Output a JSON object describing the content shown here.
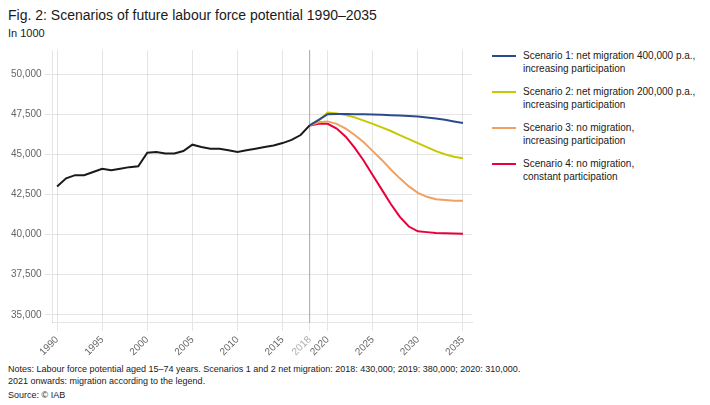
{
  "chart_data": {
    "type": "line",
    "title": "Fig. 2: Scenarios of future labour force potential 1990–2035",
    "subtitle": "In 1000",
    "notes": "Notes: Labour force potential aged 15–74 years. Scenarios 1 and 2 net migration: 2018: 430,000; 2019: 380,000; 2020: 310,000.\n2021 onwards: migration according to the legend.",
    "source": "Source: © IAB",
    "xlim": [
      1989.5,
      2036
    ],
    "xticks": [
      1990,
      1995,
      2000,
      2005,
      2010,
      2015,
      2018,
      2020,
      2025,
      2030,
      2035
    ],
    "ylim": [
      34500,
      51500
    ],
    "yticks": [
      {
        "value": 35000,
        "label": "35,000"
      },
      {
        "value": 37500,
        "label": "37,500"
      },
      {
        "value": 40000,
        "label": "40,000"
      },
      {
        "value": 42500,
        "label": "42,500"
      },
      {
        "value": 45000,
        "label": "45,000"
      },
      {
        "value": 47500,
        "label": "47,500"
      },
      {
        "value": 50000,
        "label": "50,000"
      }
    ],
    "grid": true,
    "legend": "right",
    "vlines": [
      2018
    ],
    "series": [
      {
        "color": "#1a1a1a",
        "x": [
          1990,
          1991,
          1992,
          1993,
          1994,
          1995,
          1996,
          1997,
          1998,
          1999,
          2000,
          2001,
          2002,
          2003,
          2004,
          2005,
          2006,
          2007,
          2008,
          2009,
          2010,
          2011,
          2012,
          2013,
          2014,
          2015,
          2016,
          2017,
          2018
        ],
        "values": [
          43000,
          43500,
          43700,
          43700,
          43900,
          44100,
          44000,
          44100,
          44200,
          44250,
          45100,
          45150,
          45050,
          45050,
          45200,
          45600,
          45450,
          45350,
          45350,
          45250,
          45150,
          45250,
          45350,
          45450,
          45550,
          45700,
          45900,
          46200,
          46800
        ]
      },
      {
        "name": "Scenario 1: net migration 400,000 p.a.,\nincreasing participation",
        "color": "#2a4b8d",
        "x": [
          2018,
          2019,
          2020,
          2021,
          2022,
          2023,
          2024,
          2025,
          2026,
          2027,
          2028,
          2029,
          2030,
          2031,
          2032,
          2033,
          2034,
          2035
        ],
        "values": [
          46800,
          47150,
          47500,
          47510,
          47510,
          47500,
          47490,
          47480,
          47460,
          47440,
          47420,
          47390,
          47350,
          47300,
          47230,
          47150,
          47050,
          46950
        ]
      },
      {
        "name": "Scenario 2: net migration 200,000 p.a.,\nincreasing participation",
        "color": "#c8c800",
        "x": [
          2018,
          2019,
          2020,
          2021,
          2022,
          2023,
          2024,
          2025,
          2026,
          2027,
          2028,
          2029,
          2030,
          2031,
          2032,
          2033,
          2034,
          2035
        ],
        "values": [
          46800,
          47100,
          47600,
          47550,
          47450,
          47300,
          47100,
          46900,
          46680,
          46450,
          46200,
          45950,
          45700,
          45450,
          45200,
          45000,
          44850,
          44750
        ]
      },
      {
        "name": "Scenario 3: no migration,\nincreasing participation",
        "color": "#f0a060",
        "x": [
          2018,
          2019,
          2020,
          2021,
          2022,
          2023,
          2024,
          2025,
          2026,
          2027,
          2028,
          2029,
          2030,
          2031,
          2032,
          2033,
          2034,
          2035
        ],
        "values": [
          46800,
          47000,
          47050,
          46900,
          46600,
          46200,
          45750,
          45200,
          44650,
          44050,
          43500,
          43000,
          42600,
          42350,
          42200,
          42150,
          42100,
          42100
        ]
      },
      {
        "name": "Scenario 4: no migration,\nconstant participation",
        "color": "#e8003c",
        "x": [
          2018,
          2019,
          2020,
          2021,
          2022,
          2023,
          2024,
          2025,
          2026,
          2027,
          2028,
          2029,
          2030,
          2031,
          2032,
          2033,
          2034,
          2035
        ],
        "values": [
          46800,
          46900,
          46900,
          46600,
          46100,
          45400,
          44600,
          43700,
          42800,
          41900,
          41100,
          40500,
          40200,
          40150,
          40100,
          40080,
          40060,
          40050
        ]
      }
    ]
  }
}
